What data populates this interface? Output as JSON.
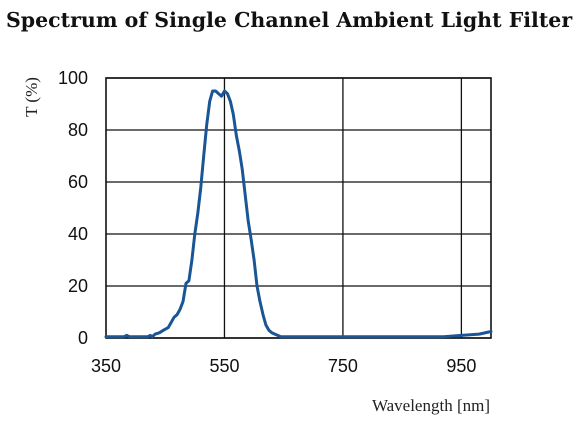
{
  "chart_data": {
    "type": "line",
    "title": "Spectrum of Single Channel Ambient Light Filter",
    "xlabel": "Wavelength [nm]",
    "ylabel": "T (%)",
    "xlim": [
      350,
      1000
    ],
    "ylim": [
      0,
      100
    ],
    "x_ticks": [
      350,
      550,
      750,
      950
    ],
    "x_tick_labels": [
      "350",
      "550",
      "750",
      "950"
    ],
    "x_gridlines": [
      550,
      750,
      950
    ],
    "y_ticks": [
      0,
      20,
      40,
      60,
      80,
      100
    ],
    "y_tick_labels": [
      "0",
      "20",
      "40",
      "60",
      "80",
      "100"
    ],
    "grid": true,
    "legend": "none",
    "line_color": "#1a5596",
    "series": [
      {
        "x": [
          350,
          380,
          385,
          390,
          420,
          425,
          428,
          433,
          440,
          447,
          455,
          460,
          465,
          470,
          475,
          480,
          485,
          490,
          495,
          500,
          505,
          510,
          515,
          520,
          525,
          530,
          535,
          540,
          545,
          550,
          555,
          560,
          565,
          570,
          575,
          580,
          585,
          590,
          595,
          600,
          605,
          610,
          615,
          620,
          625,
          630,
          635,
          640,
          645,
          650,
          660,
          670,
          680,
          690,
          700,
          720,
          750,
          780,
          800,
          820,
          850,
          880,
          900,
          920,
          950,
          980,
          1000
        ],
        "y": [
          0,
          0,
          1,
          0,
          0,
          1,
          0,
          1.5,
          2,
          3,
          4,
          6,
          8,
          9,
          11,
          14,
          21,
          22,
          30,
          40,
          48,
          58,
          70,
          82,
          91,
          95,
          95,
          94,
          93,
          95,
          94,
          91,
          86,
          78,
          72,
          65,
          55,
          45,
          38,
          30,
          20,
          14,
          9,
          5,
          3,
          2,
          1.5,
          1,
          0.5,
          0.5,
          0,
          0,
          0.5,
          0.5,
          0.5,
          0.5,
          0.5,
          0.5,
          0.5,
          0,
          0,
          0,
          0.5,
          0.5,
          1,
          1.5,
          2.5
        ]
      }
    ]
  }
}
